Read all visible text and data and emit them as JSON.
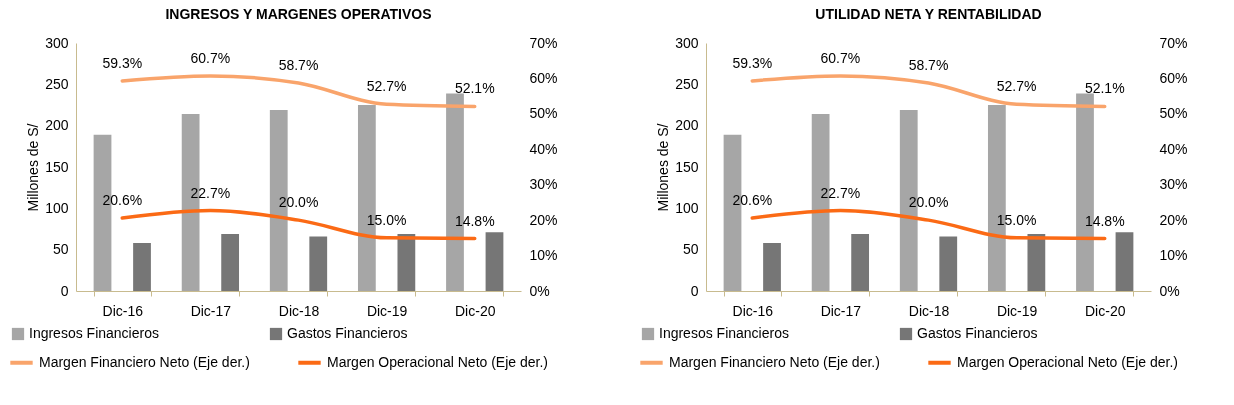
{
  "chart_data": [
    {
      "type": "bar",
      "title": "INGRESOS Y MARGENES OPERATIVOS",
      "ylabel": "Millones de S/",
      "categories": [
        "Dic-16",
        "Dic-17",
        "Dic-18",
        "Dic-19",
        "Dic-20"
      ],
      "ylim": [
        0,
        300
      ],
      "yticks": [
        0,
        50,
        100,
        150,
        200,
        250,
        300
      ],
      "y2lim": [
        0,
        70
      ],
      "y2ticks": [
        {
          "value": 0,
          "label": "0%"
        },
        {
          "value": 10,
          "label": "10%"
        },
        {
          "value": 20,
          "label": "20%"
        },
        {
          "value": 30,
          "label": "30%"
        },
        {
          "value": 40,
          "label": "40%"
        },
        {
          "value": 50,
          "label": "50%"
        },
        {
          "value": 60,
          "label": "60%"
        },
        {
          "value": 70,
          "label": "70%"
        }
      ],
      "legend": "bottom",
      "series": [
        {
          "name": "Ingresos Financieros",
          "color": "#a6a6a6",
          "values": [
            189,
            214,
            219,
            225,
            239
          ]
        },
        {
          "name": "Gastos Financieros",
          "color": "#767676",
          "values": [
            58,
            69,
            66,
            69,
            71
          ]
        },
        {
          "name": "Margen Financiero Neto (Eje der.)",
          "type": "line",
          "axis": "y2",
          "color": "#f9a46b",
          "values": [
            59.3,
            60.7,
            58.7,
            52.7,
            52.1
          ],
          "value_labels": [
            "59.3%",
            "60.7%",
            "58.7%",
            "52.7%",
            "52.1%"
          ]
        },
        {
          "name": "Margen Operacional Neto (Eje der.)",
          "type": "line",
          "axis": "y2",
          "color": "#fb6a15",
          "values": [
            20.6,
            22.7,
            20.0,
            15.0,
            14.8
          ],
          "value_labels": [
            "20.6%",
            "22.7%",
            "20.0%",
            "15.0%",
            "14.8%"
          ]
        }
      ]
    },
    {
      "type": "bar",
      "title": "UTILIDAD NETA Y RENTABILIDAD",
      "ylabel": "Millones de S/",
      "categories": [
        "Dic-16",
        "Dic-17",
        "Dic-18",
        "Dic-19",
        "Dic-20"
      ],
      "ylim": [
        0,
        300
      ],
      "yticks": [
        0,
        50,
        100,
        150,
        200,
        250,
        300
      ],
      "y2lim": [
        0,
        70
      ],
      "y2ticks": [
        {
          "value": 0,
          "label": "0%"
        },
        {
          "value": 10,
          "label": "10%"
        },
        {
          "value": 20,
          "label": "20%"
        },
        {
          "value": 30,
          "label": "30%"
        },
        {
          "value": 40,
          "label": "40%"
        },
        {
          "value": 50,
          "label": "50%"
        },
        {
          "value": 60,
          "label": "60%"
        },
        {
          "value": 70,
          "label": "70%"
        }
      ],
      "legend": "bottom",
      "series": [
        {
          "name": "Ingresos Financieros",
          "color": "#a6a6a6",
          "values": [
            189,
            214,
            219,
            225,
            239
          ]
        },
        {
          "name": "Gastos Financieros",
          "color": "#767676",
          "values": [
            58,
            69,
            66,
            69,
            71
          ]
        },
        {
          "name": "Margen Financiero Neto (Eje der.)",
          "type": "line",
          "axis": "y2",
          "color": "#f9a46b",
          "values": [
            59.3,
            60.7,
            58.7,
            52.7,
            52.1
          ],
          "value_labels": [
            "59.3%",
            "60.7%",
            "58.7%",
            "52.7%",
            "52.1%"
          ]
        },
        {
          "name": "Margen Operacional Neto (Eje der.)",
          "type": "line",
          "axis": "y2",
          "color": "#fb6a15",
          "values": [
            20.6,
            22.7,
            20.0,
            15.0,
            14.8
          ],
          "value_labels": [
            "20.6%",
            "22.7%",
            "20.0%",
            "15.0%",
            "14.8%"
          ]
        }
      ]
    }
  ]
}
